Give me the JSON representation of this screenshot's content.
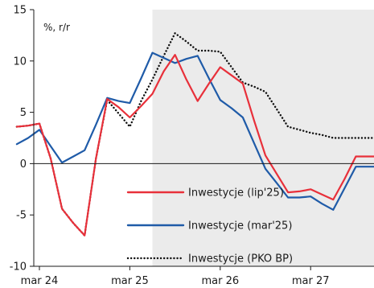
{
  "chart_data": {
    "type": "line",
    "unit_label": "%, r/r",
    "x_tick_labels": [
      "mar 24",
      "mar 25",
      "mar 26",
      "mar 27"
    ],
    "x_tick_quarter_index": [
      0,
      4,
      8,
      12
    ],
    "y_ticks": [
      -10,
      -5,
      0,
      5,
      10,
      15
    ],
    "y_tick_labels": [
      "-10",
      "-5",
      "0",
      "5",
      "10",
      "15"
    ],
    "ylim": [
      -10,
      15
    ],
    "forecast_start_quarter_index": 5,
    "quarter_count": 16,
    "grid": false,
    "legend_position": "bottom-right",
    "colors": {
      "lip25": "#e8303a",
      "mar25": "#1f5ba8",
      "pko": "#111111",
      "forecast_shade": "#ebebeb",
      "axis": "#1a1a1a"
    },
    "series": [
      {
        "key": "lip25",
        "name": "Inwestycje (lip'25)",
        "style": "solid",
        "x": [
          -1,
          -0.5,
          0,
          0.5,
          1,
          1.5,
          2,
          2.5,
          3,
          3.5,
          4,
          4.5,
          5,
          5.5,
          6,
          6.5,
          7,
          7.5,
          8,
          8.5,
          9,
          9.5,
          10,
          10.5,
          11,
          11.5,
          12,
          12.5,
          13,
          13.5,
          14,
          14.5,
          15,
          15.5
        ],
        "values": [
          3.6,
          3.7,
          3.9,
          0.5,
          -4.4,
          -5.8,
          -7.0,
          0.5,
          6.3,
          5.5,
          4.5,
          5.6,
          6.8,
          9.0,
          10.6,
          8.2,
          6.1,
          7.8,
          9.4,
          8.6,
          7.8,
          4.2,
          0.8,
          -1.0,
          -2.8,
          -2.7,
          -2.5,
          -3.0,
          -3.5,
          -1.5,
          0.7,
          0.7,
          0.7,
          0.7
        ]
      },
      {
        "key": "mar25",
        "name": "Inwestycje (mar'25)",
        "style": "solid",
        "x": [
          -1,
          -0.5,
          0,
          0.5,
          1,
          1.5,
          2,
          2.5,
          3,
          3.5,
          4,
          4.5,
          5,
          5.5,
          6,
          6.5,
          7,
          7.5,
          8,
          8.5,
          9,
          9.5,
          10,
          10.5,
          11,
          11.5,
          12,
          12.5,
          13,
          13.5,
          14,
          14.5,
          15,
          15.5
        ],
        "values": [
          1.9,
          2.5,
          3.3,
          1.7,
          0.1,
          0.7,
          1.3,
          3.8,
          6.4,
          6.1,
          5.9,
          8.3,
          10.8,
          10.3,
          9.8,
          10.2,
          10.5,
          8.3,
          6.2,
          5.4,
          4.5,
          2.0,
          -0.5,
          -1.9,
          -3.3,
          -3.3,
          -3.2,
          -3.9,
          -4.5,
          -2.4,
          -0.3,
          -0.3,
          -0.3,
          -0.3
        ]
      },
      {
        "key": "pko",
        "name": "Inwestycje (PKO BP)",
        "style": "dotted",
        "x": [
          -1,
          -0.5,
          0,
          0.5,
          1,
          1.5,
          2,
          2.5,
          3,
          3.5,
          4,
          4.5,
          5,
          5.5,
          6,
          6.5,
          7,
          7.5,
          8,
          8.5,
          9,
          9.5,
          10,
          10.5,
          11,
          11.5,
          12,
          12.5,
          13,
          13.5,
          14,
          14.5,
          15,
          15.5
        ],
        "values": [
          3.6,
          3.7,
          3.9,
          0.5,
          -4.4,
          -5.8,
          -7.0,
          0.5,
          6.2,
          4.9,
          3.6,
          6.1,
          8.2,
          10.5,
          12.7,
          11.9,
          11.0,
          11.0,
          10.9,
          9.4,
          7.9,
          7.5,
          7.0,
          5.3,
          3.6,
          3.3,
          3.0,
          2.8,
          2.5,
          2.5,
          2.5,
          2.5,
          2.5,
          2.5
        ]
      }
    ]
  }
}
